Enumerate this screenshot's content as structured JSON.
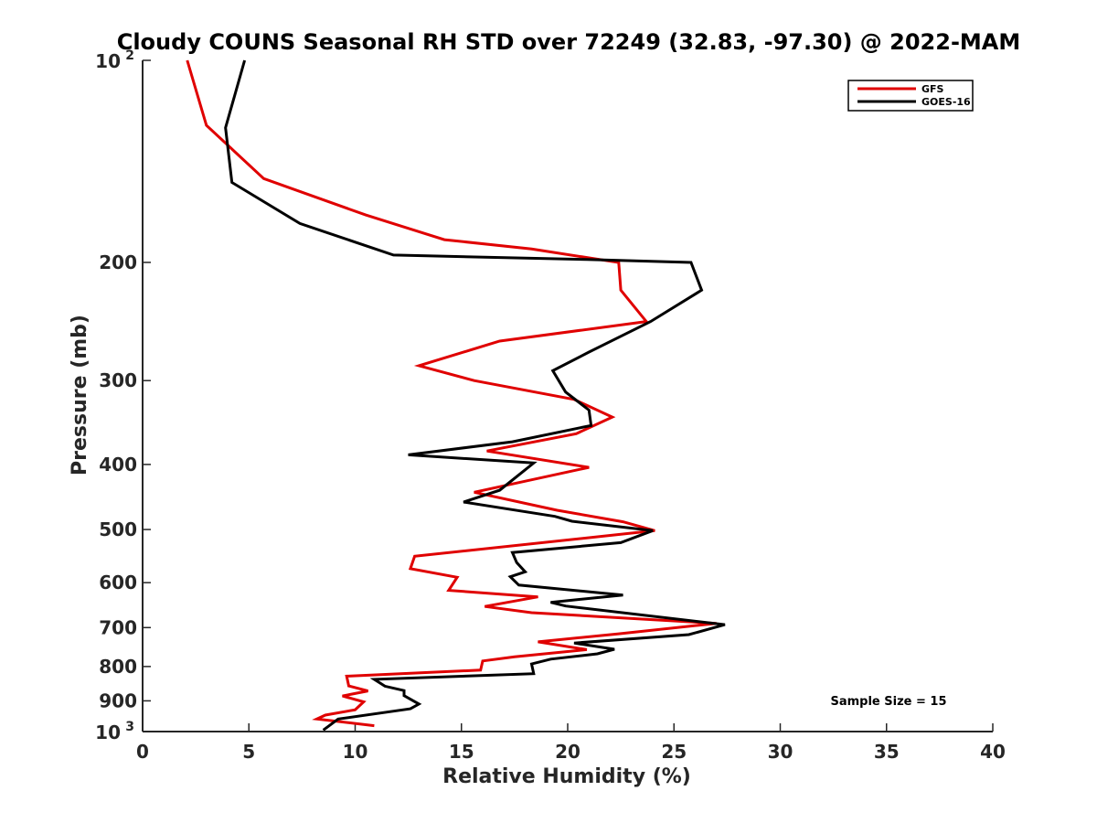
{
  "chart_data": {
    "type": "line",
    "title": "Cloudy COUNS Seasonal RH STD over 72249 (32.83, -97.30) @ 2022-MAM",
    "xlabel": "Relative Humidity (%)",
    "ylabel": "Pressure (mb)",
    "xlim": [
      0,
      40
    ],
    "ylim": [
      100,
      1000
    ],
    "yscale": "log",
    "yreversed": true,
    "x_ticks": [
      0,
      5,
      10,
      15,
      20,
      25,
      30,
      35,
      40
    ],
    "x_tick_labels": [
      "0",
      "5",
      "10",
      "15",
      "20",
      "25",
      "30",
      "35",
      "40"
    ],
    "y_ticks": [
      200,
      300,
      400,
      500,
      600,
      700,
      800,
      900
    ],
    "y_tick_labels": [
      "200",
      "300",
      "400",
      "500",
      "600",
      "700",
      "800",
      "900"
    ],
    "y_ticks_power": [
      {
        "value": 100,
        "base": "10",
        "exp": "2"
      },
      {
        "value": 1000,
        "base": "10",
        "exp": "3"
      }
    ],
    "grid": false,
    "legend_position": "top-right",
    "annotation": "Sample Size = 15",
    "series": [
      {
        "name": "GFS",
        "color": "#e00000",
        "points": [
          [
            2.1,
            100
          ],
          [
            3.0,
            125
          ],
          [
            5.7,
            150
          ],
          [
            10.5,
            170
          ],
          [
            14.2,
            185
          ],
          [
            18.3,
            191
          ],
          [
            22.4,
            200
          ],
          [
            22.5,
            220
          ],
          [
            23.7,
            245
          ],
          [
            16.8,
            262
          ],
          [
            13.0,
            285
          ],
          [
            15.6,
            300
          ],
          [
            20.3,
            320
          ],
          [
            22.1,
            340
          ],
          [
            20.4,
            360
          ],
          [
            16.2,
            382
          ],
          [
            21.0,
            404
          ],
          [
            15.6,
            440
          ],
          [
            19.5,
            468
          ],
          [
            22.6,
            487
          ],
          [
            24.1,
            502
          ],
          [
            12.8,
            548
          ],
          [
            12.6,
            572
          ],
          [
            14.8,
            589
          ],
          [
            14.4,
            616
          ],
          [
            18.6,
            630
          ],
          [
            16.1,
            651
          ],
          [
            18.3,
            665
          ],
          [
            27.0,
            690
          ],
          [
            22.4,
            715
          ],
          [
            18.6,
            735
          ],
          [
            20.9,
            755
          ],
          [
            17.5,
            774
          ],
          [
            16.0,
            785
          ],
          [
            15.9,
            810
          ],
          [
            9.6,
            827
          ],
          [
            9.7,
            855
          ],
          [
            10.6,
            870
          ],
          [
            9.4,
            885
          ],
          [
            10.4,
            903
          ],
          [
            10.0,
            928
          ],
          [
            8.6,
            945
          ],
          [
            8.2,
            958
          ],
          [
            10.9,
            980
          ]
        ]
      },
      {
        "name": "GOES-16",
        "color": "#000000",
        "points": [
          [
            4.8,
            100
          ],
          [
            3.9,
            126
          ],
          [
            4.2,
            152
          ],
          [
            7.4,
            175
          ],
          [
            11.8,
            195
          ],
          [
            20.9,
            198
          ],
          [
            25.8,
            200
          ],
          [
            26.3,
            220
          ],
          [
            23.9,
            245
          ],
          [
            21.0,
            272
          ],
          [
            19.3,
            290
          ],
          [
            19.9,
            312
          ],
          [
            21.0,
            332
          ],
          [
            21.1,
            350
          ],
          [
            17.4,
            370
          ],
          [
            12.5,
            387
          ],
          [
            18.4,
            398
          ],
          [
            16.8,
            437
          ],
          [
            15.1,
            455
          ],
          [
            19.4,
            478
          ],
          [
            20.2,
            486
          ],
          [
            24.0,
            502
          ],
          [
            22.5,
            523
          ],
          [
            17.4,
            541
          ],
          [
            17.6,
            560
          ],
          [
            18.0,
            578
          ],
          [
            17.3,
            588
          ],
          [
            17.7,
            605
          ],
          [
            22.6,
            626
          ],
          [
            19.2,
            642
          ],
          [
            19.9,
            650
          ],
          [
            27.4,
            693
          ],
          [
            25.7,
            717
          ],
          [
            20.3,
            738
          ],
          [
            22.2,
            754
          ],
          [
            21.4,
            766
          ],
          [
            19.2,
            780
          ],
          [
            18.3,
            793
          ],
          [
            18.4,
            820
          ],
          [
            10.9,
            836
          ],
          [
            11.4,
            856
          ],
          [
            12.3,
            869
          ],
          [
            12.3,
            884
          ],
          [
            13.0,
            910
          ],
          [
            12.6,
            925
          ],
          [
            9.2,
            958
          ],
          [
            8.5,
            995
          ]
        ]
      }
    ]
  }
}
